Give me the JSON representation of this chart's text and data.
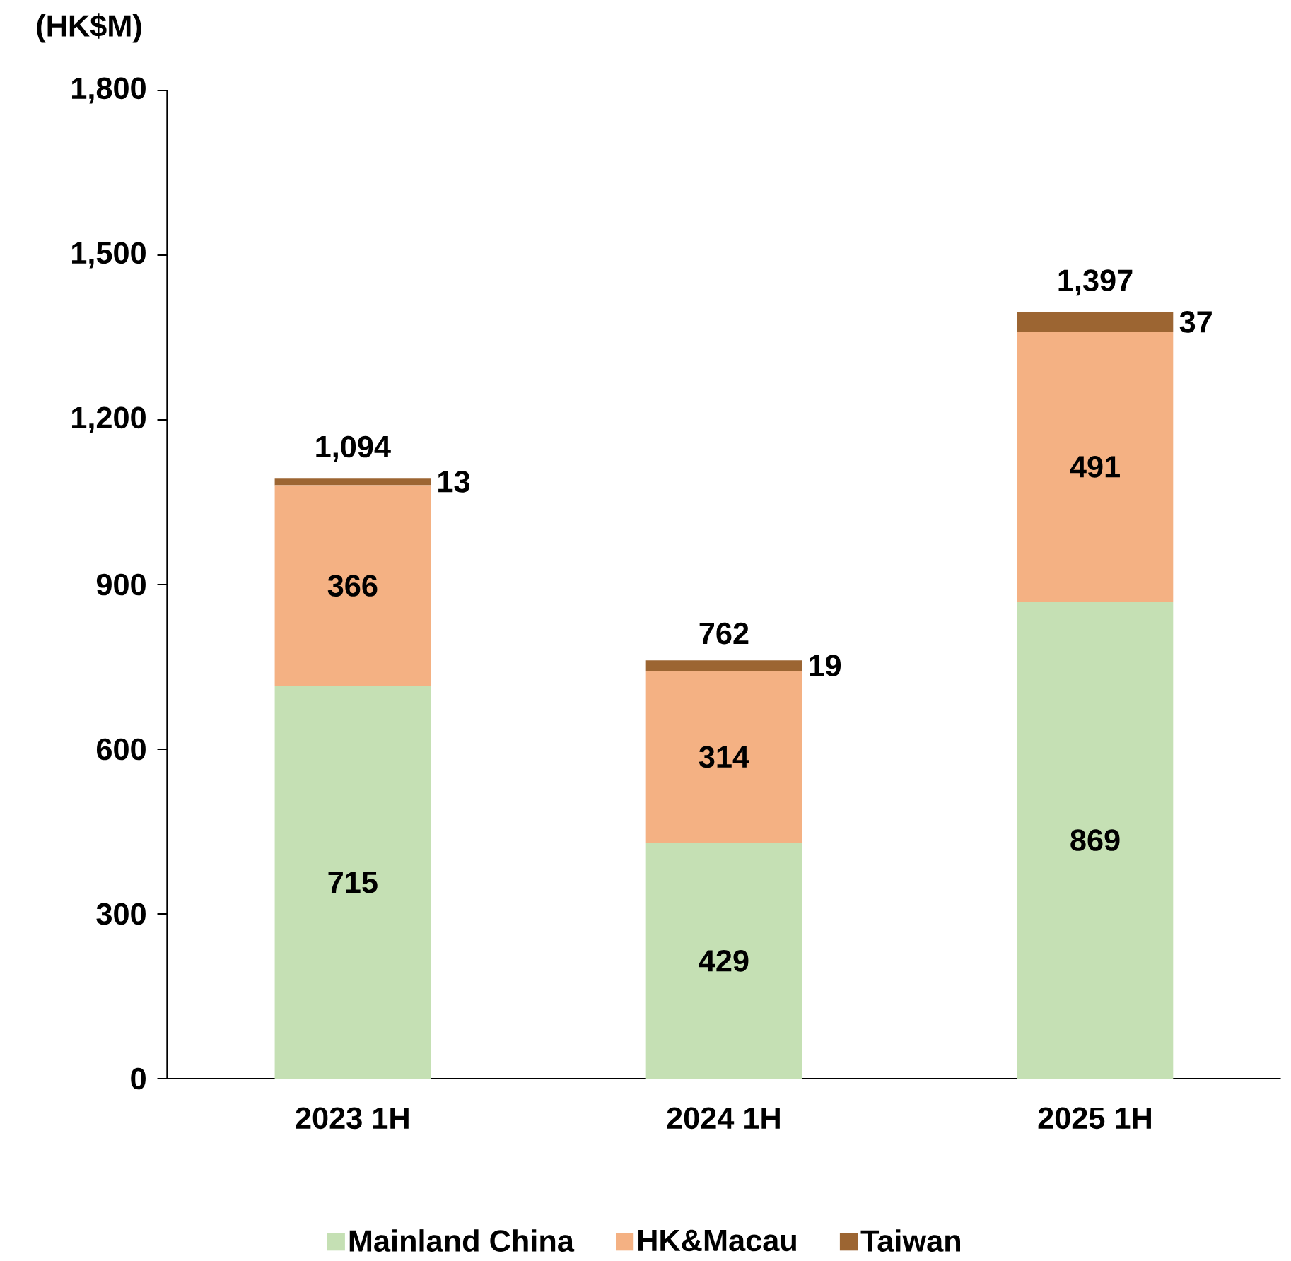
{
  "chart_data": {
    "type": "bar",
    "stacked": true,
    "ylabel": "(HK$M)",
    "categories": [
      "2023 1H",
      "2024 1H",
      "2025 1H"
    ],
    "series": [
      {
        "name": "Mainland China",
        "color": "#c5e0b4",
        "values": [
          715,
          429,
          869
        ]
      },
      {
        "name": "HK&Macau",
        "color": "#f4b183",
        "values": [
          366,
          314,
          491
        ]
      },
      {
        "name": "Taiwan",
        "color": "#9c6532",
        "values": [
          13,
          19,
          37
        ]
      }
    ],
    "ylim": [
      0,
      1800
    ],
    "yticks": [
      0,
      300,
      600,
      900,
      {
        "value": 1200,
        "label": "1,200"
      },
      {
        "value": 1500,
        "label": "1,500"
      },
      {
        "value": 1800,
        "label": "1,800"
      }
    ],
    "data_labels": true,
    "totals": [
      "1,094",
      "762",
      "1,397"
    ],
    "legend": "bottom",
    "grid": false
  }
}
